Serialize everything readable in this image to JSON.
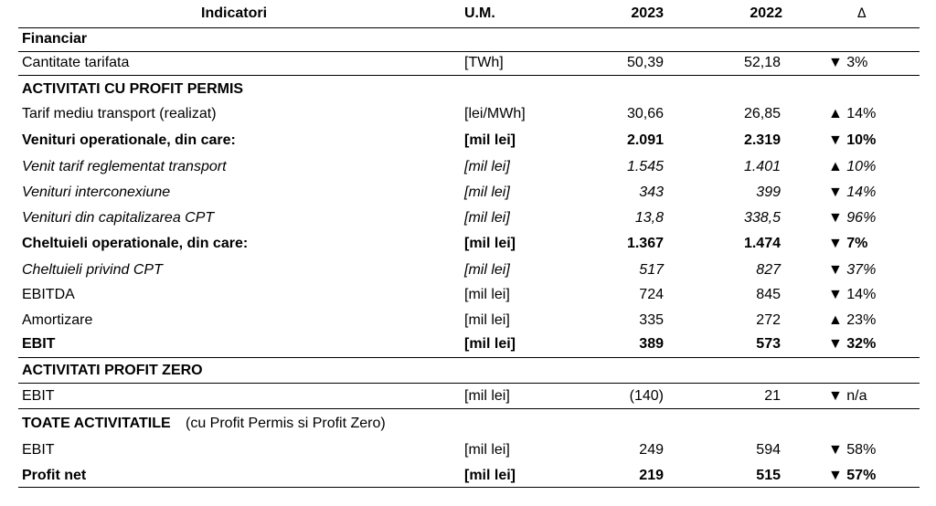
{
  "header": {
    "indicator": "Indicatori",
    "um": "U.M.",
    "y2023": "2023",
    "y2022": "2022",
    "delta": "Δ"
  },
  "rows": [
    {
      "type": "section",
      "label": "Financiar"
    },
    {
      "type": "data",
      "style": "normal",
      "label": "Cantitate tarifata",
      "um": "[TWh]",
      "y2023": "50,39",
      "y2022": "52,18",
      "delta": "▼ 3%"
    },
    {
      "type": "section",
      "label": "ACTIVITATI CU PROFIT PERMIS"
    },
    {
      "type": "data",
      "style": "normal",
      "label": "Tarif mediu transport (realizat)",
      "um": "[lei/MWh]",
      "y2023": "30,66",
      "y2022": "26,85",
      "delta": "▲ 14%"
    },
    {
      "type": "data",
      "style": "bold",
      "label": "Venituri operationale, din care:",
      "um": "[mil lei]",
      "y2023": "2.091",
      "y2022": "2.319",
      "delta": "▼ 10%"
    },
    {
      "type": "data",
      "style": "italic",
      "label": "Venit tarif reglementat transport",
      "um": "[mil lei]",
      "y2023": "1.545",
      "y2022": "1.401",
      "delta": "▲ 10%"
    },
    {
      "type": "data",
      "style": "italic",
      "label": "Venituri interconexiune",
      "um": "[mil lei]",
      "y2023": "343",
      "y2022": "399",
      "delta": "▼ 14%"
    },
    {
      "type": "data",
      "style": "italic",
      "label": "Venituri din capitalizarea CPT",
      "um": "[mil lei]",
      "y2023": "13,8",
      "y2022": "338,5",
      "delta": "▼ 96%"
    },
    {
      "type": "data",
      "style": "bold",
      "label": "Cheltuieli operationale, din care:",
      "um": "[mil lei]",
      "y2023": "1.367",
      "y2022": "1.474",
      "delta": "▼ 7%"
    },
    {
      "type": "data",
      "style": "italic",
      "label": "Cheltuieli privind CPT",
      "um": "[mil lei]",
      "y2023": "517",
      "y2022": "827",
      "delta": "▼ 37%"
    },
    {
      "type": "data",
      "style": "normal",
      "label": "EBITDA",
      "um": "[mil lei]",
      "y2023": "724",
      "y2022": "845",
      "delta": "▼ 14%"
    },
    {
      "type": "data",
      "style": "normal",
      "label": "Amortizare",
      "um": "[mil lei]",
      "y2023": "335",
      "y2022": "272",
      "delta": "▲ 23%"
    },
    {
      "type": "data",
      "style": "bold",
      "label": "EBIT",
      "um": "[mil lei]",
      "y2023": "389",
      "y2022": "573",
      "delta": "▼ 32%"
    },
    {
      "type": "section",
      "label": "ACTIVITATI PROFIT ZERO"
    },
    {
      "type": "data",
      "style": "normal",
      "label": "EBIT",
      "um": "[mil lei]",
      "y2023": "(140)",
      "y2022": "21",
      "delta": "▼ n/a"
    },
    {
      "type": "section",
      "label": "TOATE ACTIVITATILE",
      "suffix": " (cu Profit Permis si Profit Zero)"
    },
    {
      "type": "data",
      "style": "normal",
      "label": "EBIT",
      "um": "[mil lei]",
      "y2023": "249",
      "y2022": "594",
      "delta": "▼ 58%"
    },
    {
      "type": "data",
      "style": "bold",
      "label": "Profit net",
      "um": "[mil lei]",
      "y2023": "219",
      "y2022": "515",
      "delta": "▼ 57%"
    }
  ]
}
